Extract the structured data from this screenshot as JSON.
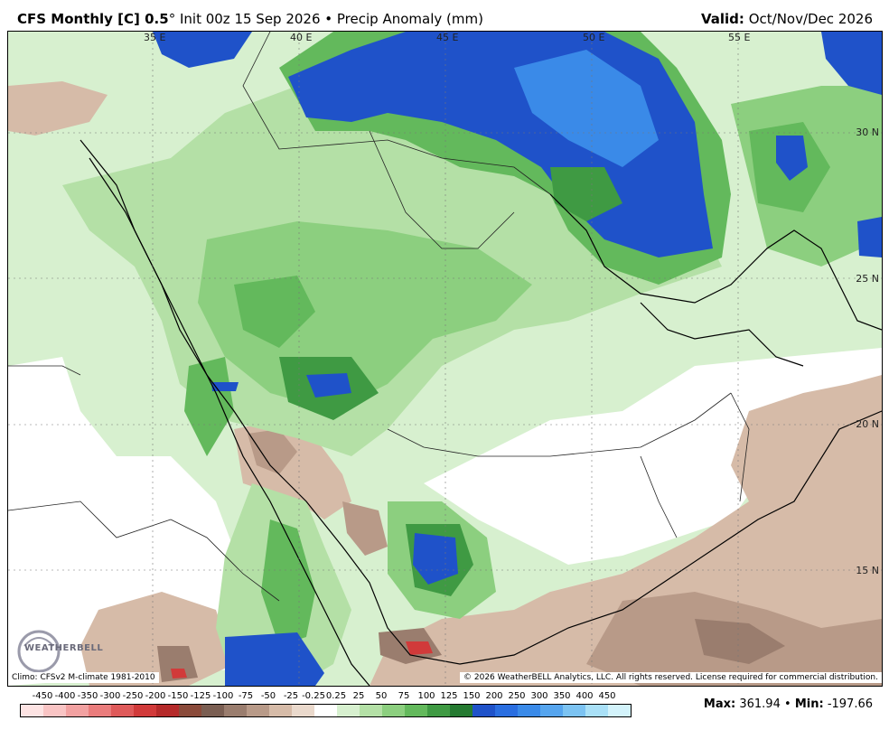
{
  "header": {
    "title_bold": "CFS Monthly [C] 0.5",
    "title_deg": "°",
    "title_rest": " Init 00z 15 Sep 2026 • Precip Anomaly (mm)",
    "valid_label": "Valid:",
    "valid_value": "Oct/Nov/Dec 2026"
  },
  "map": {
    "lon_labels": [
      "35 E",
      "40 E",
      "45 E",
      "50 E",
      "55 E"
    ],
    "lat_labels": [
      "30 N",
      "25 N",
      "20 N",
      "15 N"
    ],
    "logo_text": "WEATHERBELL",
    "climo": "Climo: CFSv2 M-climate 1981-2010",
    "copyright": "© 2026 WeatherBELL Analytics, LLC. All rights reserved. License required for commercial distribution."
  },
  "colorbar": {
    "ticks": [
      "-450",
      "-400",
      "-350",
      "-300",
      "-250",
      "-200",
      "-150",
      "-125",
      "-100",
      "-75",
      "-50",
      "-25",
      "-0.25",
      "0.25",
      "25",
      "50",
      "75",
      "100",
      "125",
      "150",
      "200",
      "250",
      "300",
      "350",
      "400",
      "450"
    ],
    "colors": [
      "#fde3e3",
      "#f9c4c4",
      "#f2a1a1",
      "#ea7c7c",
      "#df5a5a",
      "#d13a3a",
      "#b52a2a",
      "#8a4a3a",
      "#7a5e52",
      "#9a7d6e",
      "#b89a88",
      "#d6bba8",
      "#ead9cc",
      "#ffffff",
      "#d7f0cf",
      "#b4e0a6",
      "#8ccf7f",
      "#63b95c",
      "#3f9a43",
      "#257a31",
      "#1f52c9",
      "#2a6ee0",
      "#3a8ae8",
      "#56a5ee",
      "#7cc3f2",
      "#a9e0f7",
      "#d3f3fb"
    ]
  },
  "stats": {
    "max_label": "Max:",
    "max_value": "361.94",
    "sep": "•",
    "min_label": "Min:",
    "min_value": "-197.66"
  }
}
